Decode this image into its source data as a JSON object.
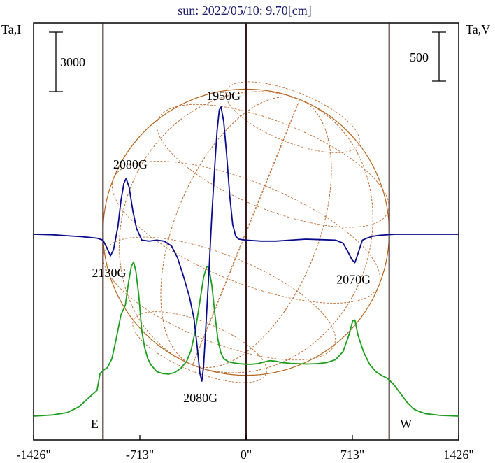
{
  "chart_data": {
    "type": "line",
    "title": "sun: 2022/05/10: 9.70[cm]",
    "ylabel_left": "Ta,I",
    "ylabel_right": "Ta,V",
    "xlim": [
      -1426,
      1426
    ],
    "x_ticks": [
      {
        "value": -1426,
        "label": "-1426\""
      },
      {
        "value": -713,
        "label": "-713\""
      },
      {
        "value": 0,
        "label": "0\""
      },
      {
        "value": 713,
        "label": "713\""
      },
      {
        "value": 1426,
        "label": "1426\""
      }
    ],
    "limb_markers": [
      {
        "value": -960,
        "label": "E"
      },
      {
        "value": 960,
        "label": "W"
      }
    ],
    "scale_bars": {
      "left": {
        "label": "3000",
        "series": "I"
      },
      "right": {
        "label": "500",
        "series": "V"
      }
    },
    "solar_radius_arcsec": 960,
    "series": [
      {
        "name": "I",
        "color": "#1e9e1e",
        "points": [
          [
            -1426,
            0
          ],
          [
            -1300,
            60
          ],
          [
            -1200,
            180
          ],
          [
            -1120,
            480
          ],
          [
            -1060,
            900
          ],
          [
            -1000,
            1300
          ],
          [
            -980,
            2150
          ],
          [
            -960,
            2300
          ],
          [
            -930,
            2450
          ],
          [
            -900,
            2900
          ],
          [
            -870,
            3950
          ],
          [
            -840,
            5100
          ],
          [
            -810,
            5600
          ],
          [
            -790,
            6700
          ],
          [
            -770,
            7550
          ],
          [
            -755,
            7780
          ],
          [
            -740,
            7350
          ],
          [
            -720,
            6100
          ],
          [
            -700,
            4300
          ],
          [
            -680,
            3450
          ],
          [
            -660,
            2900
          ],
          [
            -640,
            2600
          ],
          [
            -600,
            2250
          ],
          [
            -560,
            2150
          ],
          [
            -520,
            2120
          ],
          [
            -480,
            2200
          ],
          [
            -440,
            2400
          ],
          [
            -400,
            2750
          ],
          [
            -370,
            3300
          ],
          [
            -340,
            4350
          ],
          [
            -310,
            5800
          ],
          [
            -285,
            7000
          ],
          [
            -265,
            7550
          ],
          [
            -250,
            7500
          ],
          [
            -230,
            6600
          ],
          [
            -210,
            5200
          ],
          [
            -190,
            3900
          ],
          [
            -170,
            3200
          ],
          [
            -150,
            2900
          ],
          [
            -120,
            2750
          ],
          [
            -80,
            2680
          ],
          [
            -40,
            2640
          ],
          [
            0,
            2620
          ],
          [
            40,
            2620
          ],
          [
            80,
            2650
          ],
          [
            120,
            2730
          ],
          [
            160,
            2800
          ],
          [
            200,
            2770
          ],
          [
            240,
            2700
          ],
          [
            300,
            2660
          ],
          [
            360,
            2640
          ],
          [
            420,
            2630
          ],
          [
            480,
            2650
          ],
          [
            540,
            2700
          ],
          [
            600,
            2850
          ],
          [
            650,
            3250
          ],
          [
            690,
            4100
          ],
          [
            715,
            4800
          ],
          [
            730,
            4850
          ],
          [
            750,
            4100
          ],
          [
            790,
            3200
          ],
          [
            830,
            2600
          ],
          [
            870,
            2250
          ],
          [
            910,
            2050
          ],
          [
            950,
            1900
          ],
          [
            990,
            1600
          ],
          [
            1030,
            1200
          ],
          [
            1080,
            700
          ],
          [
            1130,
            330
          ],
          [
            1200,
            130
          ],
          [
            1300,
            40
          ],
          [
            1426,
            0
          ]
        ]
      },
      {
        "name": "V",
        "color": "#0a0a8c",
        "points": [
          [
            -1426,
            0
          ],
          [
            -1300,
            -5
          ],
          [
            -1200,
            -15
          ],
          [
            -1100,
            -25
          ],
          [
            -1000,
            -40
          ],
          [
            -960,
            -60
          ],
          [
            -940,
            -120
          ],
          [
            -910,
            -220
          ],
          [
            -890,
            -160
          ],
          [
            -860,
            80
          ],
          [
            -840,
            340
          ],
          [
            -820,
            520
          ],
          [
            -805,
            570
          ],
          [
            -785,
            480
          ],
          [
            -760,
            240
          ],
          [
            -735,
            60
          ],
          [
            -700,
            -60
          ],
          [
            -650,
            -70
          ],
          [
            -600,
            -60
          ],
          [
            -550,
            -70
          ],
          [
            -500,
            -120
          ],
          [
            -460,
            -240
          ],
          [
            -420,
            -430
          ],
          [
            -380,
            -640
          ],
          [
            -350,
            -860
          ],
          [
            -330,
            -1120
          ],
          [
            -310,
            -1420
          ],
          [
            -297,
            -1500
          ],
          [
            -285,
            -1350
          ],
          [
            -270,
            -950
          ],
          [
            -250,
            -400
          ],
          [
            -230,
            200
          ],
          [
            -210,
            700
          ],
          [
            -195,
            1050
          ],
          [
            -180,
            1270
          ],
          [
            -168,
            1300
          ],
          [
            -150,
            1150
          ],
          [
            -130,
            800
          ],
          [
            -110,
            400
          ],
          [
            -90,
            100
          ],
          [
            -70,
            -20
          ],
          [
            -50,
            -50
          ],
          [
            0,
            -60
          ],
          [
            100,
            -70
          ],
          [
            200,
            -70
          ],
          [
            300,
            -60
          ],
          [
            400,
            -50
          ],
          [
            500,
            -55
          ],
          [
            600,
            -60
          ],
          [
            650,
            -90
          ],
          [
            680,
            -170
          ],
          [
            710,
            -260
          ],
          [
            730,
            -290
          ],
          [
            750,
            -200
          ],
          [
            780,
            -60
          ],
          [
            810,
            -40
          ],
          [
            850,
            -20
          ],
          [
            900,
            -10
          ],
          [
            1000,
            0
          ],
          [
            1200,
            0
          ],
          [
            1426,
            0
          ]
        ]
      }
    ],
    "annotations": [
      {
        "label": "1950G",
        "x": -180,
        "anchor": "above-peak-V"
      },
      {
        "label": "2080G",
        "x": -805,
        "anchor": "above-peak-V"
      },
      {
        "label": "2130G",
        "x": -910,
        "anchor": "below-dip-V"
      },
      {
        "label": "2080G",
        "x": -297,
        "anchor": "below-dip-V"
      },
      {
        "label": "2070G",
        "x": 730,
        "anchor": "below-dip-V"
      }
    ]
  }
}
